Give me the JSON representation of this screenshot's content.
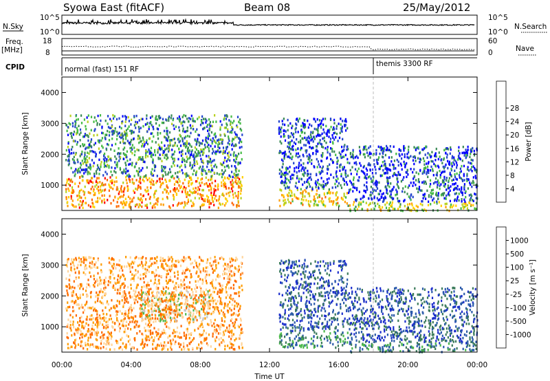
{
  "header": {
    "radar": "Syowa East (fitACF)",
    "beam": "Beam 08",
    "date": "25/May/2012"
  },
  "params": {
    "nsky_label": "N.Sky",
    "nsky_ticks": [
      "10^5",
      "10^0"
    ],
    "nsearch_label": "N.Search",
    "nsearch_ticks": [
      "10^5",
      "10^0"
    ],
    "freq_label": "Freq.",
    "freq_unit": "[MHz]",
    "freq_ticks": [
      "18",
      "8"
    ],
    "nave_label": "Nave",
    "nave_ticks": [
      "60",
      "0"
    ],
    "cpid_label": "CPID",
    "cpid_segments": [
      {
        "start_hour": 0,
        "name": "normal (fast) 151 RF"
      },
      {
        "start_hour": 18,
        "name": "themis 3300 RF"
      }
    ]
  },
  "axes": {
    "xlabel": "Time UT",
    "xticks": [
      "00:00",
      "04:00",
      "08:00",
      "12:00",
      "16:00",
      "20:00",
      "00:00"
    ],
    "ylabel": "Slant Range [km]",
    "yticks": [
      "1000",
      "2000",
      "3000",
      "4000"
    ]
  },
  "chart_data": [
    {
      "type": "heatmap",
      "panel": "power",
      "x_range_hours": [
        0,
        24
      ],
      "y_range_km": [
        180,
        4500
      ],
      "colorbar_label": "Power [dB]",
      "colorbar_ticks": [
        "4",
        "8",
        "12",
        "16",
        "20",
        "24",
        "28"
      ],
      "colorbar_colors": [
        "#0000ff",
        "#2244cc",
        "#3a8a55",
        "#44bb44",
        "#b8d020",
        "#ffd000",
        "#ff9c00",
        "#ff6600",
        "#ff0000"
      ],
      "echo_regions": [
        {
          "t0": 0.2,
          "t1": 10.4,
          "r0": 300,
          "r1": 1300,
          "value": 26
        },
        {
          "t0": 0.2,
          "t1": 10.4,
          "r0": 1300,
          "r1": 3300,
          "value": 12
        },
        {
          "t0": 12.5,
          "t1": 16.5,
          "r0": 350,
          "r1": 900,
          "value": 24
        },
        {
          "t0": 12.5,
          "t1": 16.5,
          "r0": 900,
          "r1": 3200,
          "value": 6
        },
        {
          "t0": 16.5,
          "t1": 24.0,
          "r0": 200,
          "r1": 500,
          "value": 20
        },
        {
          "t0": 16.5,
          "t1": 24.0,
          "r0": 500,
          "r1": 2300,
          "value": 6
        }
      ]
    },
    {
      "type": "heatmap",
      "panel": "velocity",
      "x_range_hours": [
        0,
        24
      ],
      "y_range_km": [
        180,
        4500
      ],
      "colorbar_label": "Velocity [m s⁻¹]",
      "colorbar_ticks": [
        "-1000",
        "-500",
        "-100",
        "-25",
        "25",
        "100",
        "500",
        "1000"
      ],
      "colorbar_colors": [
        "#ff0000",
        "#ff6a00",
        "#ff9c00",
        "#ffd49a",
        "#c8c8c8",
        "#4ab84a",
        "#3a7a5a",
        "#2a5aaa",
        "#1c2ecc"
      ],
      "echo_regions": [
        {
          "t0": 0.2,
          "t1": 10.4,
          "r0": 300,
          "r1": 1300,
          "value": -200
        },
        {
          "t0": 4.5,
          "t1": 8.5,
          "r0": 1200,
          "r1": 2200,
          "value": 0
        },
        {
          "t0": 0.2,
          "t1": 10.4,
          "r0": 1300,
          "r1": 3300,
          "value": -300
        },
        {
          "t0": 12.5,
          "t1": 16.5,
          "r0": 350,
          "r1": 900,
          "value": 150
        },
        {
          "t0": 12.5,
          "t1": 16.5,
          "r0": 900,
          "r1": 3200,
          "value": 600
        },
        {
          "t0": 16.5,
          "t1": 24.0,
          "r0": 200,
          "r1": 500,
          "value": 150
        },
        {
          "t0": 16.5,
          "t1": 24.0,
          "r0": 500,
          "r1": 2300,
          "value": 700
        }
      ]
    }
  ]
}
